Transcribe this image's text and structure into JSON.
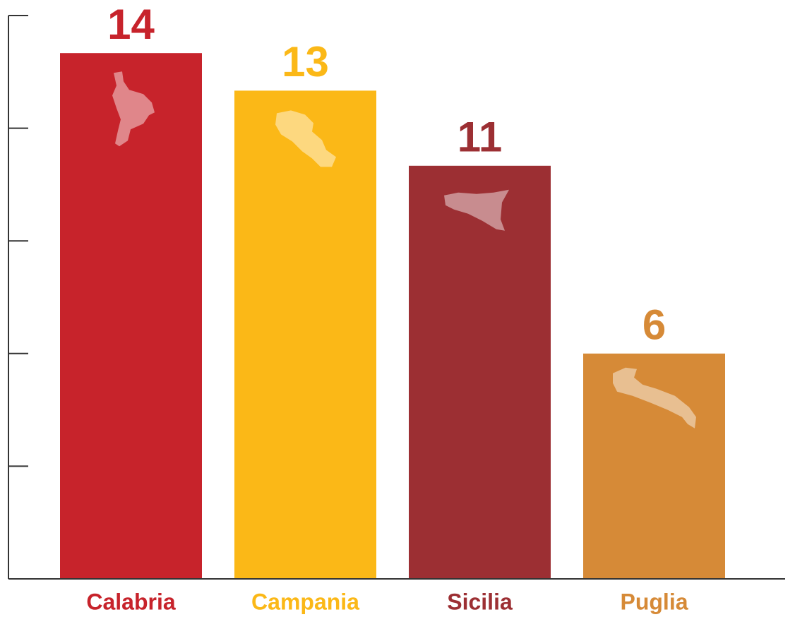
{
  "chart_data": {
    "type": "bar",
    "categories": [
      "Calabria",
      "Campania",
      "Sicilia",
      "Puglia"
    ],
    "values": [
      14,
      13,
      11,
      6
    ],
    "colors": [
      "#c7232b",
      "#fbb817",
      "#9c2f33",
      "#d68a37"
    ],
    "ylim": [
      0,
      15
    ],
    "yticks": [
      0,
      3,
      6,
      9,
      12,
      15
    ]
  }
}
